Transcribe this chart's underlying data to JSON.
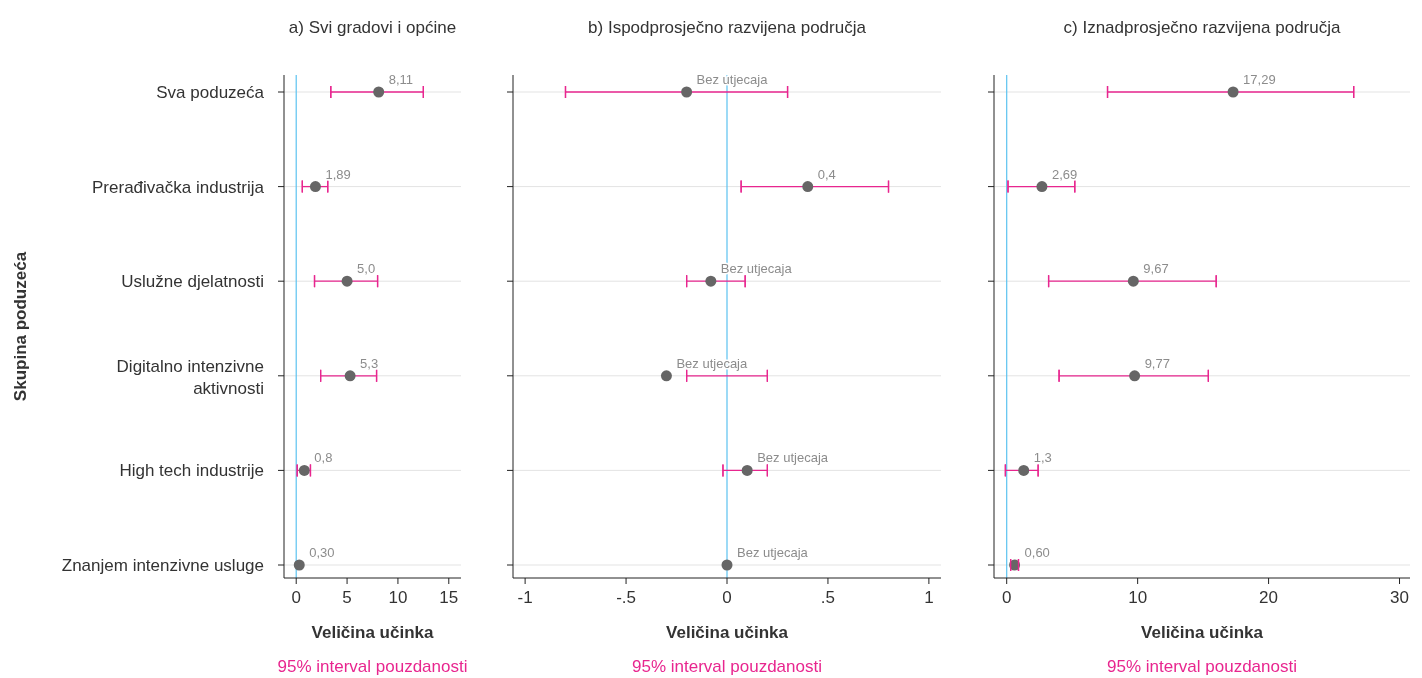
{
  "chart_data": [
    {
      "type": "scatter",
      "title": "a) Svi gradovi i općine",
      "orientation": "horizontal",
      "categories": [
        "Sva poduzeća",
        "Prerađivačka industrija",
        "Uslužne djelatnosti",
        "Digitalno intenzivne aktivnosti",
        "High tech industrije",
        "Znanjem intenzivne usluge"
      ],
      "series": [
        {
          "color": "#666666",
          "values": [
            8.11,
            1.89,
            5.0,
            5.3,
            0.8,
            0.3
          ],
          "errors": [
            [
              3.4,
              12.5
            ],
            [
              0.6,
              3.1
            ],
            [
              1.8,
              8.0
            ],
            [
              2.4,
              7.9
            ],
            [
              0.1,
              1.4
            ],
            null
          ],
          "value_labels": [
            "8,11",
            "1,89",
            "5,0",
            "5,3",
            "0,8",
            "0,30"
          ]
        }
      ],
      "xlabel": "Veličina učinka",
      "ylabel": "Skupina poduzeća",
      "xlim": [
        -1.2,
        16.2
      ],
      "xticks": [
        0,
        5,
        10,
        15
      ],
      "ref_lines": [
        {
          "axis": "x",
          "value": 0,
          "color": "#5bc2f0"
        }
      ],
      "grid": "y",
      "marker": "circle",
      "annotations": [
        "95% interval pouzdanosti"
      ]
    },
    {
      "type": "scatter",
      "title": "b) Ispodprosječno razvijena područja",
      "orientation": "horizontal",
      "categories": [
        null,
        null,
        null,
        null,
        null,
        null
      ],
      "series": [
        {
          "color": "#666666",
          "values": [
            -0.2,
            0.4,
            -0.08,
            -0.3,
            0.1,
            0
          ],
          "errors": [
            [
              -0.8,
              0.3
            ],
            [
              0.07,
              0.8
            ],
            [
              -0.2,
              0.09
            ],
            [
              -0.2,
              0.2
            ],
            [
              -0.02,
              0.2
            ],
            null
          ],
          "value_labels": [
            "Bez utjecaja",
            "0,4",
            "Bez utjecaja",
            "Bez utjecaja",
            "Bez utjecaja",
            "Bez utjecaja"
          ]
        }
      ],
      "xlabel": "Veličina učinka",
      "xlim": [
        -1.06,
        1.06
      ],
      "xticks": [
        {
          "value": -1,
          "label": "-1"
        },
        {
          "value": -0.5,
          "label": "-.5"
        },
        0,
        {
          "value": 0.5,
          "label": ".5"
        },
        1
      ],
      "ref_lines": [
        {
          "axis": "x",
          "value": 0,
          "color": "#5bc2f0"
        }
      ],
      "grid": "y",
      "marker": "circle",
      "tick_labels": "x",
      "annotations": [
        "95% interval pouzdanosti"
      ]
    },
    {
      "type": "scatter",
      "title": "c) Iznadprosječno razvijena područja",
      "orientation": "horizontal",
      "categories": [
        null,
        null,
        null,
        null,
        null,
        null
      ],
      "series": [
        {
          "color": "#666666",
          "values": [
            17.29,
            2.69,
            9.67,
            9.77,
            1.3,
            0.6
          ],
          "errors": [
            [
              7.7,
              26.5
            ],
            [
              0.1,
              5.2
            ],
            [
              3.2,
              16.0
            ],
            [
              4.0,
              15.4
            ],
            [
              -0.1,
              2.4
            ],
            [
              0.3,
              0.9
            ]
          ],
          "value_labels": [
            "17,29",
            "2,69",
            "9,67",
            "9,77",
            "1,3",
            "0,60"
          ]
        }
      ],
      "xlabel": "Veličina učinka",
      "xlim": [
        -0.97,
        30.8
      ],
      "xticks": [
        0,
        10,
        20,
        30
      ],
      "ref_lines": [
        {
          "axis": "x",
          "value": 0,
          "color": "#5bc2f0"
        }
      ],
      "grid": "y",
      "marker": "circle",
      "tick_labels": "x",
      "annotations": [
        "95% interval pouzdanosti"
      ]
    }
  ]
}
